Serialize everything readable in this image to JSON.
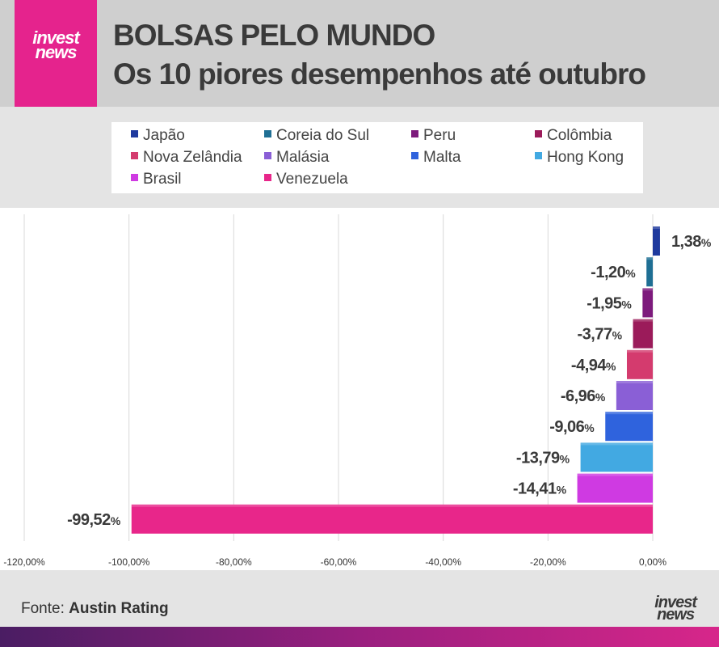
{
  "header": {
    "logo_line1": "invest",
    "logo_line2": "news",
    "title_line1": "BOLSAS PELO MUNDO",
    "title_line2": "Os 10 piores desempenhos até outubro"
  },
  "legend": [
    {
      "label": "Japão",
      "color": "#1f3a9e"
    },
    {
      "label": "Coreia do Sul",
      "color": "#1f6f94"
    },
    {
      "label": "Peru",
      "color": "#7d1a7c"
    },
    {
      "label": "Colômbia",
      "color": "#9b1b5a"
    },
    {
      "label": "Nova Zelândia",
      "color": "#d43b6e"
    },
    {
      "label": "Malásia",
      "color": "#8a5fd6"
    },
    {
      "label": "Malta",
      "color": "#2f63dd"
    },
    {
      "label": "Hong Kong",
      "color": "#42a9e2"
    },
    {
      "label": "Brasil",
      "color": "#cf3ae2"
    },
    {
      "label": "Venezuela",
      "color": "#e8268a"
    }
  ],
  "chart_data": {
    "type": "bar",
    "orientation": "horizontal",
    "title": "BOLSAS PELO MUNDO",
    "subtitle": "Os 10 piores desempenhos até outubro",
    "series": [
      {
        "name": "Japão",
        "value": 1.38,
        "label": "1,38"
      },
      {
        "name": "Coreia do Sul",
        "value": -1.2,
        "label": "-1,20"
      },
      {
        "name": "Peru",
        "value": -1.95,
        "label": "-1,95"
      },
      {
        "name": "Colômbia",
        "value": -3.77,
        "label": "-3,77"
      },
      {
        "name": "Nova Zelândia",
        "value": -4.94,
        "label": "-4,94"
      },
      {
        "name": "Malásia",
        "value": -6.96,
        "label": "-6,96"
      },
      {
        "name": "Malta",
        "value": -9.06,
        "label": "-9,06"
      },
      {
        "name": "Hong Kong",
        "value": -13.79,
        "label": "-13,79"
      },
      {
        "name": "Brasil",
        "value": -14.41,
        "label": "-14,41"
      },
      {
        "name": "Venezuela",
        "value": -99.52,
        "label": "-99,52"
      }
    ],
    "unit_suffix": "%",
    "xlim": [
      -120,
      0
    ],
    "x_ticks": [
      -120,
      -100,
      -80,
      -60,
      -40,
      -20,
      0
    ],
    "x_tick_labels": [
      "-120,00%",
      "-100,00%",
      "-80,00%",
      "-60,00%",
      "-40,00%",
      "-20,00%",
      "0,00%"
    ],
    "grid": true,
    "legend_position": "top"
  },
  "footer": {
    "source_prefix": "Fonte: ",
    "source_name": "Austin Rating",
    "logo_line1": "invest",
    "logo_line2": "news"
  }
}
